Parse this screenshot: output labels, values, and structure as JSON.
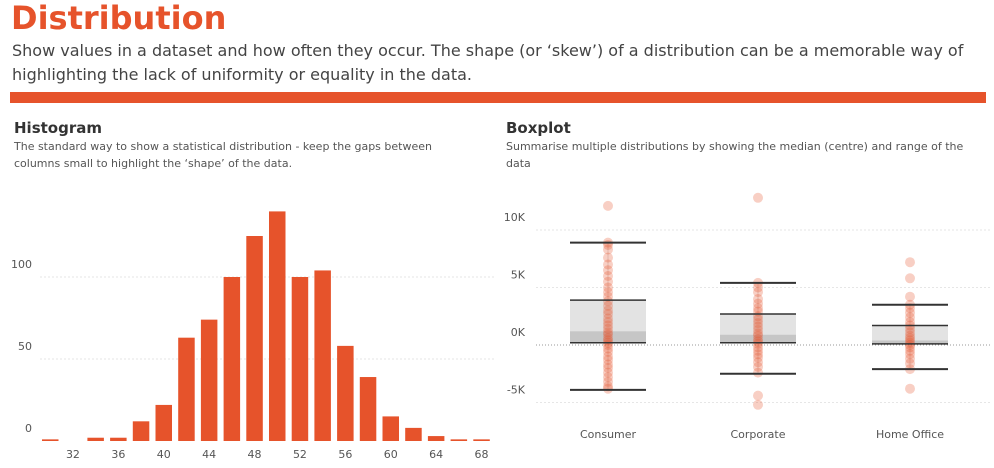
{
  "page": {
    "title": "Distribution",
    "subtitle": "Show values in a dataset and how often they occur. The shape (or ‘skew’) of a distribution can be a memorable way of highlighting the lack of uniformity or equality in the data.",
    "accent_color": "#e6532b"
  },
  "histogram": {
    "title": "Histogram",
    "description": "The standard way to show a statistical distribution - keep the gaps between columns small to highlight the ‘shape’ of the data."
  },
  "boxplot": {
    "title": "Boxplot",
    "description": "Summarise multiple distributions by showing the median (centre) and range of the data"
  },
  "chart_data": [
    {
      "type": "bar",
      "title": "Histogram",
      "bar_color": "#e6532b",
      "x": [
        30,
        32,
        34,
        36,
        38,
        40,
        42,
        44,
        46,
        48,
        50,
        52,
        54,
        56,
        58,
        60,
        62,
        64,
        66,
        68
      ],
      "values": [
        1,
        0,
        2,
        2,
        12,
        22,
        63,
        74,
        100,
        125,
        140,
        100,
        104,
        58,
        39,
        15,
        8,
        3,
        1,
        1
      ],
      "x_ticks": [
        "32",
        "36",
        "40",
        "44",
        "48",
        "52",
        "56",
        "60",
        "64",
        "68"
      ],
      "y_ticks": [
        "0",
        "50",
        "100"
      ],
      "ylim": [
        0,
        150
      ],
      "grid": true
    },
    {
      "type": "boxplot",
      "title": "Boxplot",
      "y_unit": "K",
      "y_ticks": [
        "10K",
        "5K",
        "0K",
        "-5K"
      ],
      "ylim": [
        -6.5,
        13
      ],
      "categories": [
        "Consumer",
        "Corporate",
        "Home Office"
      ],
      "point_color": "#e6532b",
      "box_color": "#d9d9d9",
      "boxes": [
        {
          "name": "Consumer",
          "whisker_low": -3.9,
          "q1": 0.2,
          "median": 1.2,
          "q3": 3.9,
          "whisker_high": 8.9,
          "points": [
            12.1,
            8.9,
            8.7,
            8.3,
            7.6,
            7.0,
            6.5,
            6.0,
            5.5,
            5.0,
            4.6,
            4.2,
            3.8,
            3.4,
            3.0,
            2.7,
            2.3,
            2.0,
            1.7,
            1.4,
            1.1,
            0.9,
            0.6,
            0.4,
            0.2,
            0.0,
            -0.3,
            -0.6,
            -1.0,
            -1.3,
            -1.7,
            -2.0,
            -2.4,
            -2.8,
            -3.2,
            -3.6,
            -3.8
          ]
        },
        {
          "name": "Corporate",
          "whisker_low": -2.5,
          "q1": 0.2,
          "median": 0.9,
          "q3": 2.7,
          "whisker_high": 5.4,
          "points": [
            12.8,
            5.4,
            5.0,
            4.6,
            4.0,
            3.6,
            3.2,
            2.9,
            2.5,
            2.2,
            1.9,
            1.6,
            1.3,
            1.0,
            0.8,
            0.5,
            0.3,
            0.1,
            -0.2,
            -0.5,
            -0.8,
            -1.1,
            -1.5,
            -1.9,
            -2.4,
            -4.4,
            -5.2
          ]
        },
        {
          "name": "Home Office",
          "whisker_low": -2.1,
          "q1": 0.1,
          "median": 0.4,
          "q3": 1.7,
          "whisker_high": 3.5,
          "points": [
            7.2,
            5.8,
            4.2,
            3.5,
            3.2,
            2.8,
            2.4,
            2.0,
            1.7,
            1.4,
            1.1,
            0.8,
            0.6,
            0.4,
            0.2,
            0.0,
            -0.2,
            -0.5,
            -0.8,
            -1.2,
            -1.6,
            -2.1,
            -3.8
          ]
        }
      ],
      "grid": true
    }
  ]
}
